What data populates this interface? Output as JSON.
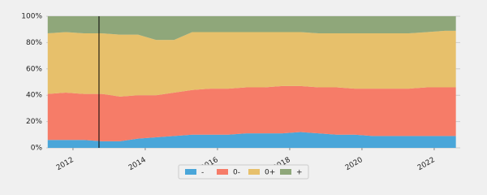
{
  "chart_data": {
    "type": "stacked_area",
    "x": [
      2011.3,
      2011.8,
      2012.3,
      2012.8,
      2013.3,
      2013.8,
      2014.3,
      2014.8,
      2015.3,
      2015.8,
      2016.3,
      2016.8,
      2017.3,
      2017.8,
      2018.3,
      2018.8,
      2019.3,
      2019.8,
      2020.3,
      2020.8,
      2021.3,
      2021.8,
      2022.3,
      2022.6
    ],
    "series": [
      {
        "name": "-",
        "color": "#4aa6d9",
        "values": [
          6,
          6,
          6,
          5,
          5,
          7,
          8,
          9,
          10,
          10,
          10,
          11,
          11,
          11,
          12,
          11,
          10,
          10,
          9,
          9,
          9,
          9,
          9,
          9
        ]
      },
      {
        "name": "0-",
        "color": "#f67c68",
        "values": [
          35,
          36,
          35,
          36,
          34,
          33,
          32,
          33,
          34,
          35,
          35,
          35,
          35,
          36,
          35,
          35,
          36,
          35,
          36,
          36,
          36,
          37,
          37,
          37
        ]
      },
      {
        "name": "0+",
        "color": "#e7c06b",
        "values": [
          46,
          46,
          46,
          46,
          47,
          46,
          42,
          40,
          44,
          43,
          43,
          42,
          42,
          41,
          41,
          41,
          41,
          42,
          42,
          42,
          42,
          42,
          43,
          43
        ]
      },
      {
        "name": "+",
        "color": "#8fa77a",
        "values": [
          13,
          12,
          13,
          13,
          14,
          14,
          18,
          18,
          12,
          12,
          12,
          12,
          12,
          12,
          12,
          13,
          13,
          13,
          13,
          13,
          13,
          12,
          11,
          11
        ]
      }
    ],
    "xlim": [
      2011.26,
      2022.72
    ],
    "xticks": [
      2012,
      2014,
      2016,
      2018,
      2020,
      2022
    ],
    "ylim": [
      0,
      100
    ],
    "yticks": [
      {
        "value": 0,
        "label": "0%"
      },
      {
        "value": 20,
        "label": "20%"
      },
      {
        "value": 40,
        "label": "40%"
      },
      {
        "value": 60,
        "label": "60%"
      },
      {
        "value": 80,
        "label": "80%"
      },
      {
        "value": 100,
        "label": "100%"
      }
    ],
    "vertical_line": 2012.72,
    "grid": true,
    "legend": "bottom"
  }
}
